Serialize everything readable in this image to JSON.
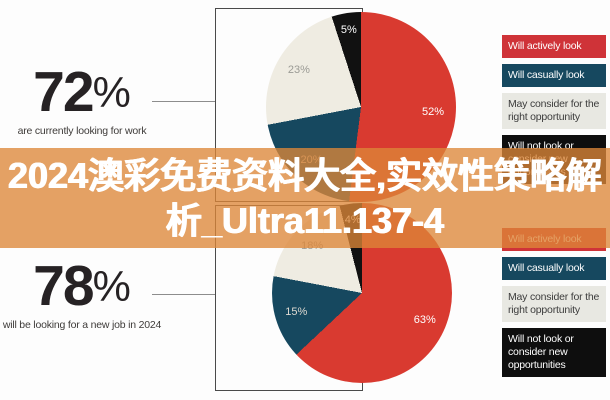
{
  "stats": [
    {
      "value": "72",
      "percent_sign": "%",
      "caption": "are currently looking for work"
    },
    {
      "value": "78",
      "percent_sign": "%",
      "caption": "will be looking for a new job in 2024"
    }
  ],
  "banner": {
    "line1": "2024澳彩免费资料大全,实效性策略解",
    "line2": "析_Ultra11.137-4",
    "bg_color": "#dd8638",
    "text_color": "#ffffff"
  },
  "legend": {
    "items": [
      {
        "label": "Will actively look",
        "bg": "#cf3338",
        "color": "#ffffff"
      },
      {
        "label": "Will casually look",
        "bg": "#16485f",
        "color": "#ffffff"
      },
      {
        "label": "May consider for the right opportunity",
        "bg": "#e8e8e2",
        "color": "#3c3c3c"
      },
      {
        "label": "Will not look or consider new opportunities",
        "bg": "#0e0e0e",
        "color": "#ffffff"
      }
    ]
  },
  "chart_data": [
    {
      "type": "pie",
      "title": "72% are currently looking for work",
      "legend_position": "right",
      "start_angle_deg": 0,
      "direction": "clockwise",
      "labels": [
        "Will actively look",
        "Will casually look",
        "May consider for the right opportunity",
        "Will not look or consider new opportunities"
      ],
      "values": [
        52,
        20,
        23,
        5
      ],
      "unit": "%",
      "colors": [
        "#d93a30",
        "#16485f",
        "#efece2",
        "#111111"
      ],
      "label_colors": [
        "#ffffff",
        "#c7c3bb",
        "#9b9b95",
        "#ffffff"
      ]
    },
    {
      "type": "pie",
      "title": "78% will be looking for a new job in 2024",
      "legend_position": "right",
      "start_angle_deg": 0,
      "direction": "clockwise",
      "labels": [
        "Will actively look",
        "Will casually look",
        "May consider for the right opportunity",
        "Will not look or consider new opportunities"
      ],
      "values": [
        63,
        15,
        18,
        4
      ],
      "unit": "%",
      "colors": [
        "#d93a30",
        "#16485f",
        "#efece2",
        "#111111"
      ],
      "label_colors": [
        "#ffffff",
        "#dedad2",
        "#a09d96",
        "#ffffff"
      ]
    }
  ]
}
